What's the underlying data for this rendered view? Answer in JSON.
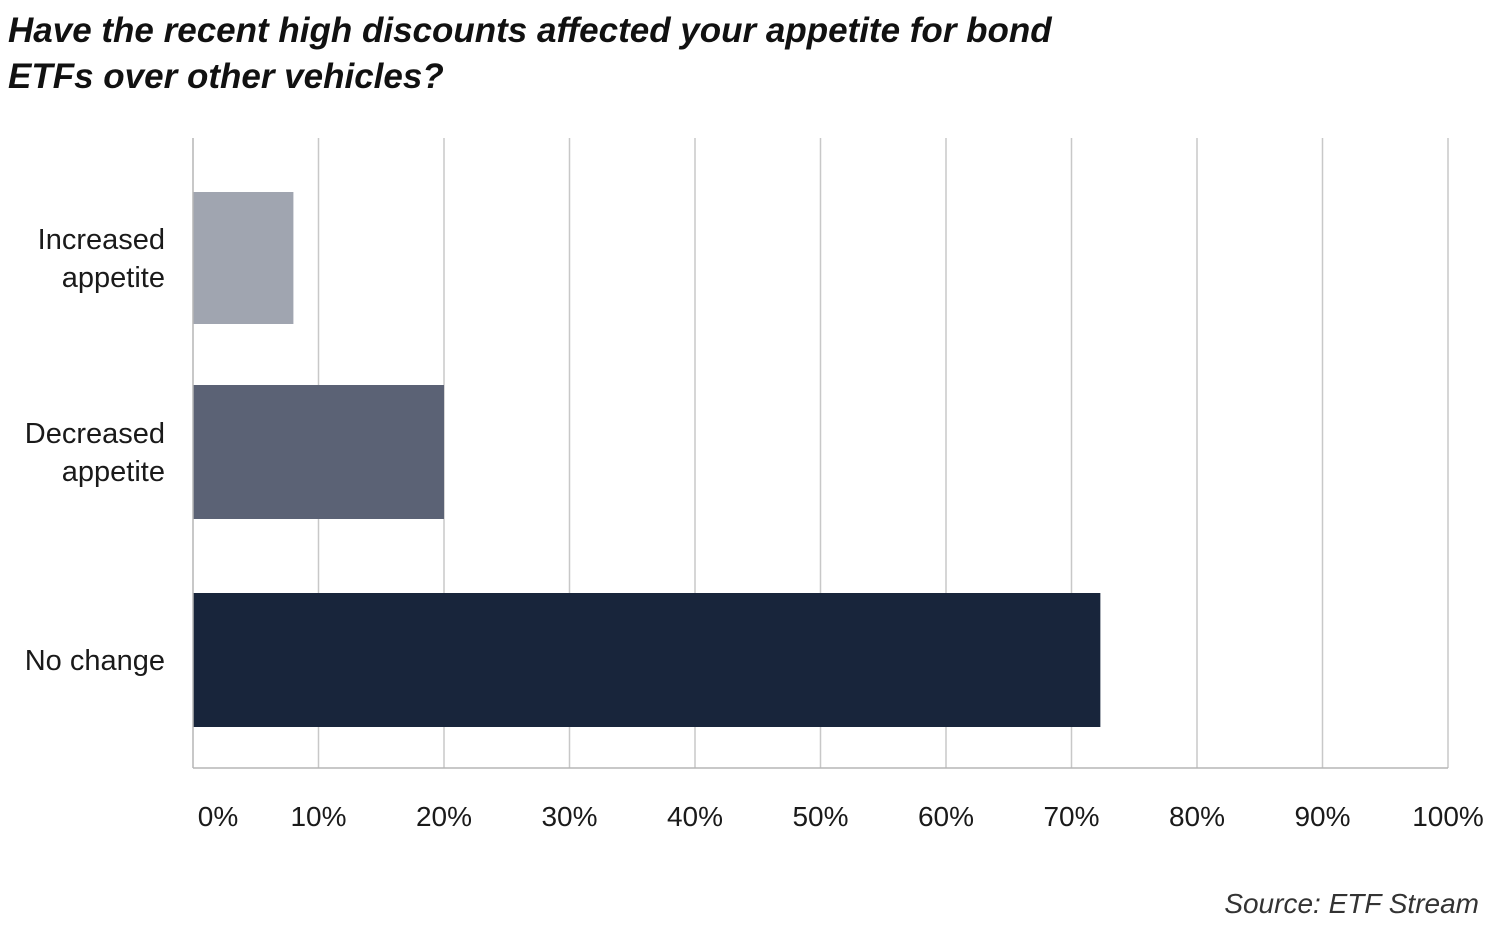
{
  "title": "Have the recent high discounts affected your appetite for bond ETFs over other vehicles?",
  "source": "Source: ETF Stream",
  "chart_data": {
    "type": "bar",
    "orientation": "horizontal",
    "categories": [
      [
        "Increased",
        "appetite"
      ],
      [
        "Decreased",
        "appetite"
      ],
      [
        "No change"
      ]
    ],
    "values": [
      8,
      20,
      72.3
    ],
    "colors": [
      "#a0a5b0",
      "#5b6275",
      "#18253b"
    ],
    "xlim": [
      0,
      100
    ],
    "xticks": [
      0,
      10,
      20,
      30,
      40,
      50,
      60,
      70,
      80,
      90,
      100
    ],
    "xtick_labels": [
      "0%",
      "10%",
      "20%",
      "30%",
      "40%",
      "50%",
      "60%",
      "70%",
      "80%",
      "90%",
      "100%"
    ],
    "grid": true,
    "legend": "none",
    "xlabel": "",
    "ylabel": ""
  }
}
